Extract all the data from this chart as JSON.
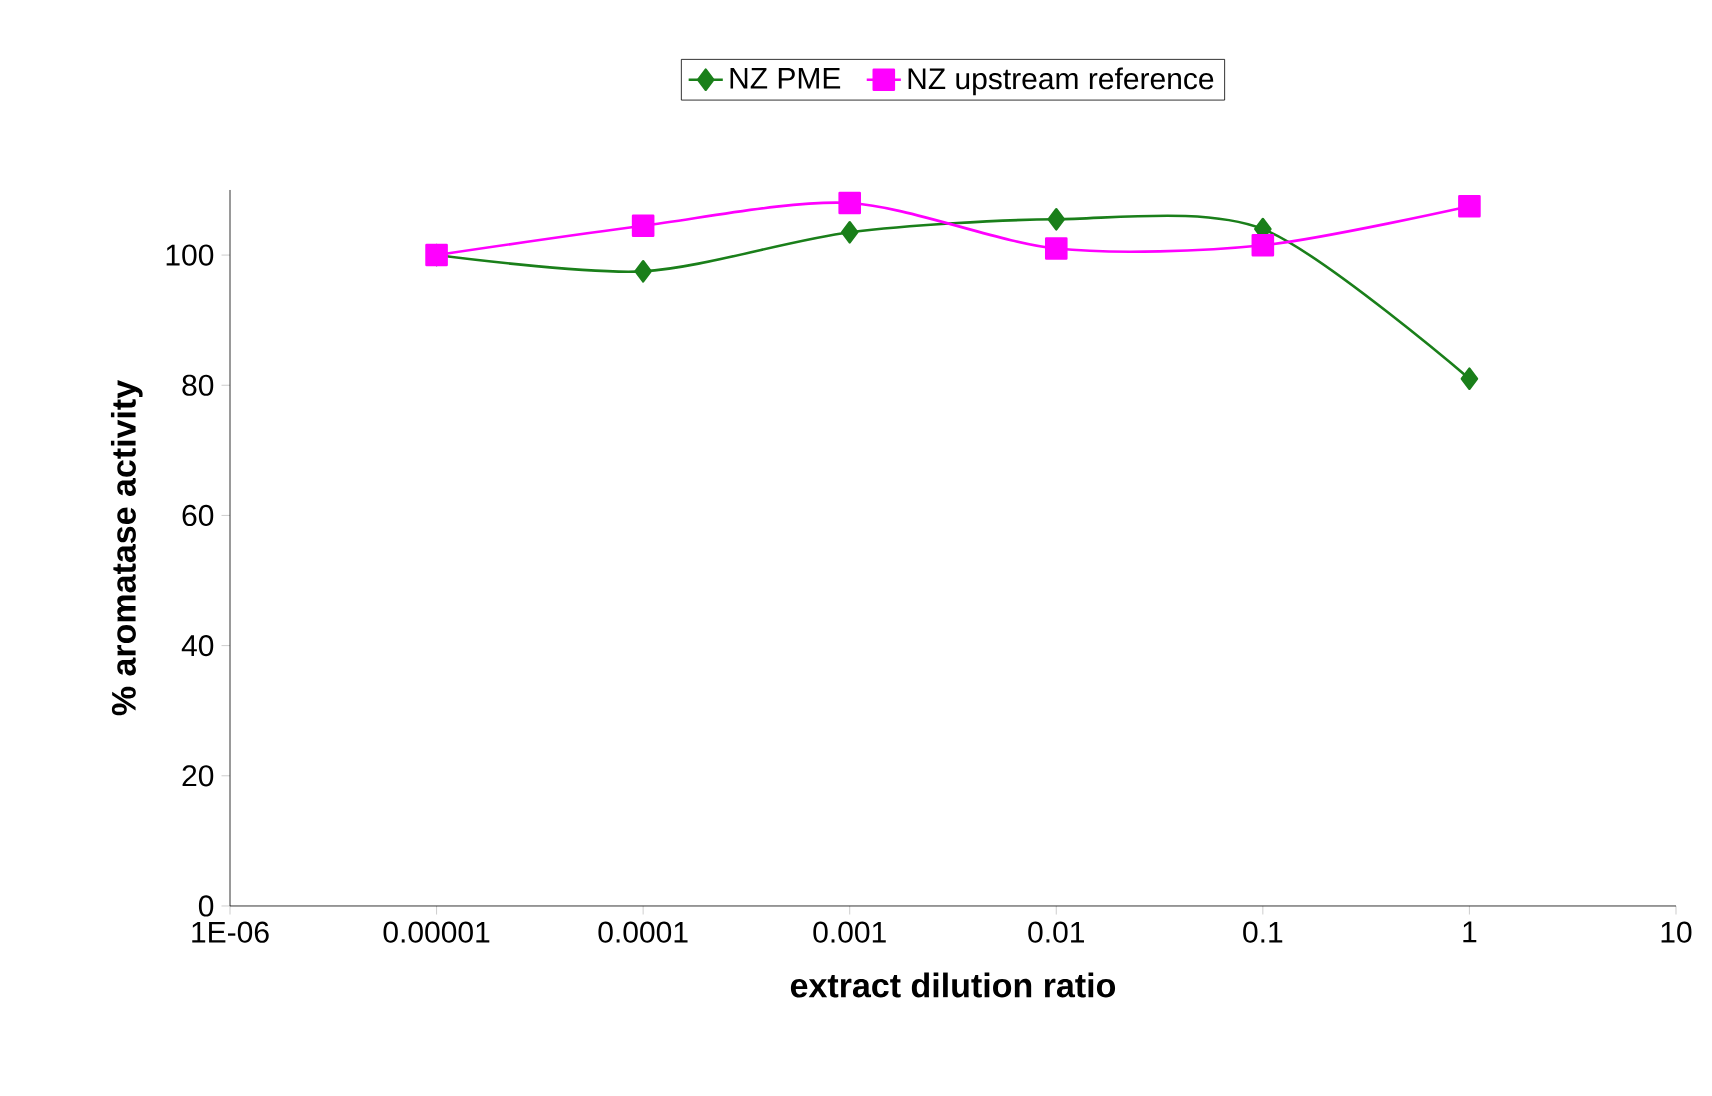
{
  "chart_data": {
    "type": "line",
    "xlabel": "extract dilution ratio",
    "ylabel": "% aromatase activity",
    "x": [
      1e-05,
      0.0001,
      0.001,
      0.01,
      0.1,
      1
    ],
    "series": [
      {
        "name": "NZ PME",
        "color": "#1a7f1a",
        "marker": "diamond",
        "values": [
          100,
          97.5,
          103.5,
          105.5,
          104,
          81
        ]
      },
      {
        "name": "NZ upstream reference",
        "color": "#ff00ff",
        "marker": "square",
        "values": [
          100,
          104.5,
          108,
          101,
          101.5,
          107.5
        ]
      }
    ],
    "log": "x",
    "xlim": [
      1e-06,
      10
    ],
    "xticks": [
      {
        "value": 1e-06,
        "label": "1E-06"
      },
      {
        "value": 1e-05,
        "label": "0.00001"
      },
      {
        "value": 0.0001,
        "label": "0.0001"
      },
      {
        "value": 0.001,
        "label": "0.001"
      },
      {
        "value": 0.01,
        "label": "0.01"
      },
      {
        "value": 0.1,
        "label": "0.1"
      },
      {
        "value": 1,
        "label": "1"
      },
      {
        "value": 10,
        "label": "10"
      }
    ],
    "ylim": [
      0,
      110
    ],
    "yticks": [
      0,
      20,
      40,
      60,
      80,
      100
    ],
    "grid": false,
    "legend": "top",
    "line_style": "solid"
  }
}
